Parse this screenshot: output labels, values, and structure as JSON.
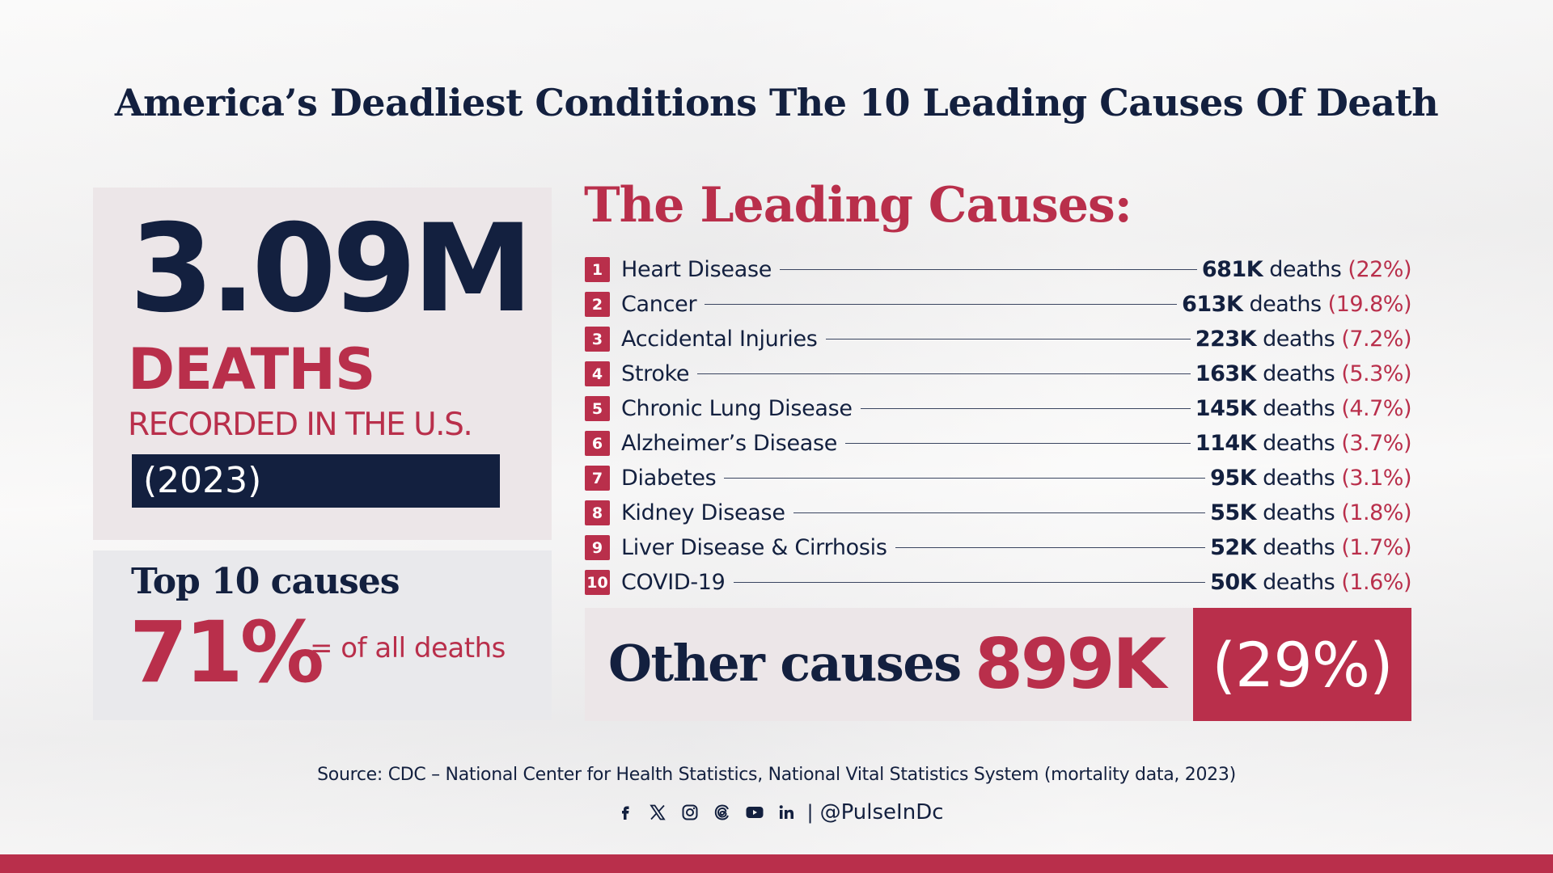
{
  "headline": "America’s Deadliest Conditions The 10 Leading Causes Of Death",
  "summary": {
    "total": "3.09M",
    "deaths_word": "DEATHS",
    "recorded": "RECORDED IN THE U.S.",
    "year": "(2023)"
  },
  "top10": {
    "label": "Top 10 causes",
    "percent": "71%",
    "suffix": "= of all deaths"
  },
  "list": {
    "title": "The Leading Causes:",
    "causes": [
      {
        "rank": "1",
        "name": "Heart Disease",
        "count": "681K",
        "unit": "deaths",
        "pct": "(22%)"
      },
      {
        "rank": "2",
        "name": "Cancer",
        "count": "613K",
        "unit": "deaths",
        "pct": "(19.8%)"
      },
      {
        "rank": "3",
        "name": "Accidental Injuries",
        "count": "223K",
        "unit": "deaths",
        "pct": "(7.2%)"
      },
      {
        "rank": "4",
        "name": "Stroke",
        "count": "163K",
        "unit": "deaths",
        "pct": "(5.3%)"
      },
      {
        "rank": "5",
        "name": "Chronic Lung Disease",
        "count": "145K",
        "unit": "deaths",
        "pct": "(4.7%)"
      },
      {
        "rank": "6",
        "name": "Alzheimer’s Disease",
        "count": "114K",
        "unit": "deaths",
        "pct": "(3.7%)"
      },
      {
        "rank": "7",
        "name": "Diabetes",
        "count": "95K",
        "unit": "deaths",
        "pct": "(3.1%)"
      },
      {
        "rank": "8",
        "name": "Kidney Disease",
        "count": "55K",
        "unit": "deaths",
        "pct": "(1.8%)"
      },
      {
        "rank": "9",
        "name": "Liver Disease & Cirrhosis",
        "count": "52K",
        "unit": "deaths",
        "pct": "(1.7%)"
      },
      {
        "rank": "10",
        "name": "COVID-19",
        "count": "50K",
        "unit": "deaths",
        "pct": "(1.6%)"
      }
    ]
  },
  "other": {
    "label": "Other causes",
    "count": "899K",
    "pct": "(29%)"
  },
  "footer": {
    "source": "Source: CDC – National Center for Health Statistics, National Vital Statistics System (mortality data, 2023)",
    "separator": "|",
    "handle": "@PulseInDc",
    "icons": [
      "facebook-icon",
      "x-icon",
      "instagram-icon",
      "threads-icon",
      "youtube-icon",
      "linkedin-icon"
    ]
  },
  "colors": {
    "navy": "#13203f",
    "crimson": "#b92f4b",
    "panel_pink": "#ece6e8",
    "panel_gray": "#e9e9ec",
    "background": "#f3f2f1"
  }
}
